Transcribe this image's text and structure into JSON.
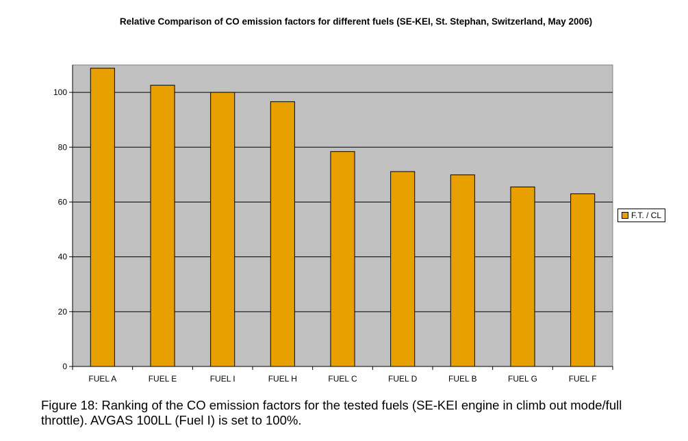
{
  "chart_data": {
    "type": "bar",
    "title": "Relative Comparison of CO emission factors for different fuels (SE-KEI, St. Stephan, Switzerland, May 2006)",
    "categories": [
      "FUEL A",
      "FUEL E",
      "FUEL I",
      "FUEL H",
      "FUEL C",
      "FUEL D",
      "FUEL B",
      "FUEL G",
      "FUEL F"
    ],
    "series": [
      {
        "name": "F.T. / CL",
        "values": [
          108.8,
          102.6,
          100,
          96.6,
          78.4,
          71.1,
          69.9,
          65.5,
          63.0
        ]
      }
    ],
    "ylim": [
      0,
      110
    ],
    "yticks": [
      0,
      20,
      40,
      60,
      80,
      100
    ],
    "xlabel": "",
    "ylabel": "",
    "grid": true,
    "legend_position": "right",
    "bar_color": "#E8A000",
    "plot_background": "#C0C0C0"
  },
  "caption": "Figure 18: Ranking of the CO emission factors for the tested fuels (SE-KEI engine in climb out mode/full throttle). AVGAS 100LL (Fuel I) is set to 100%."
}
